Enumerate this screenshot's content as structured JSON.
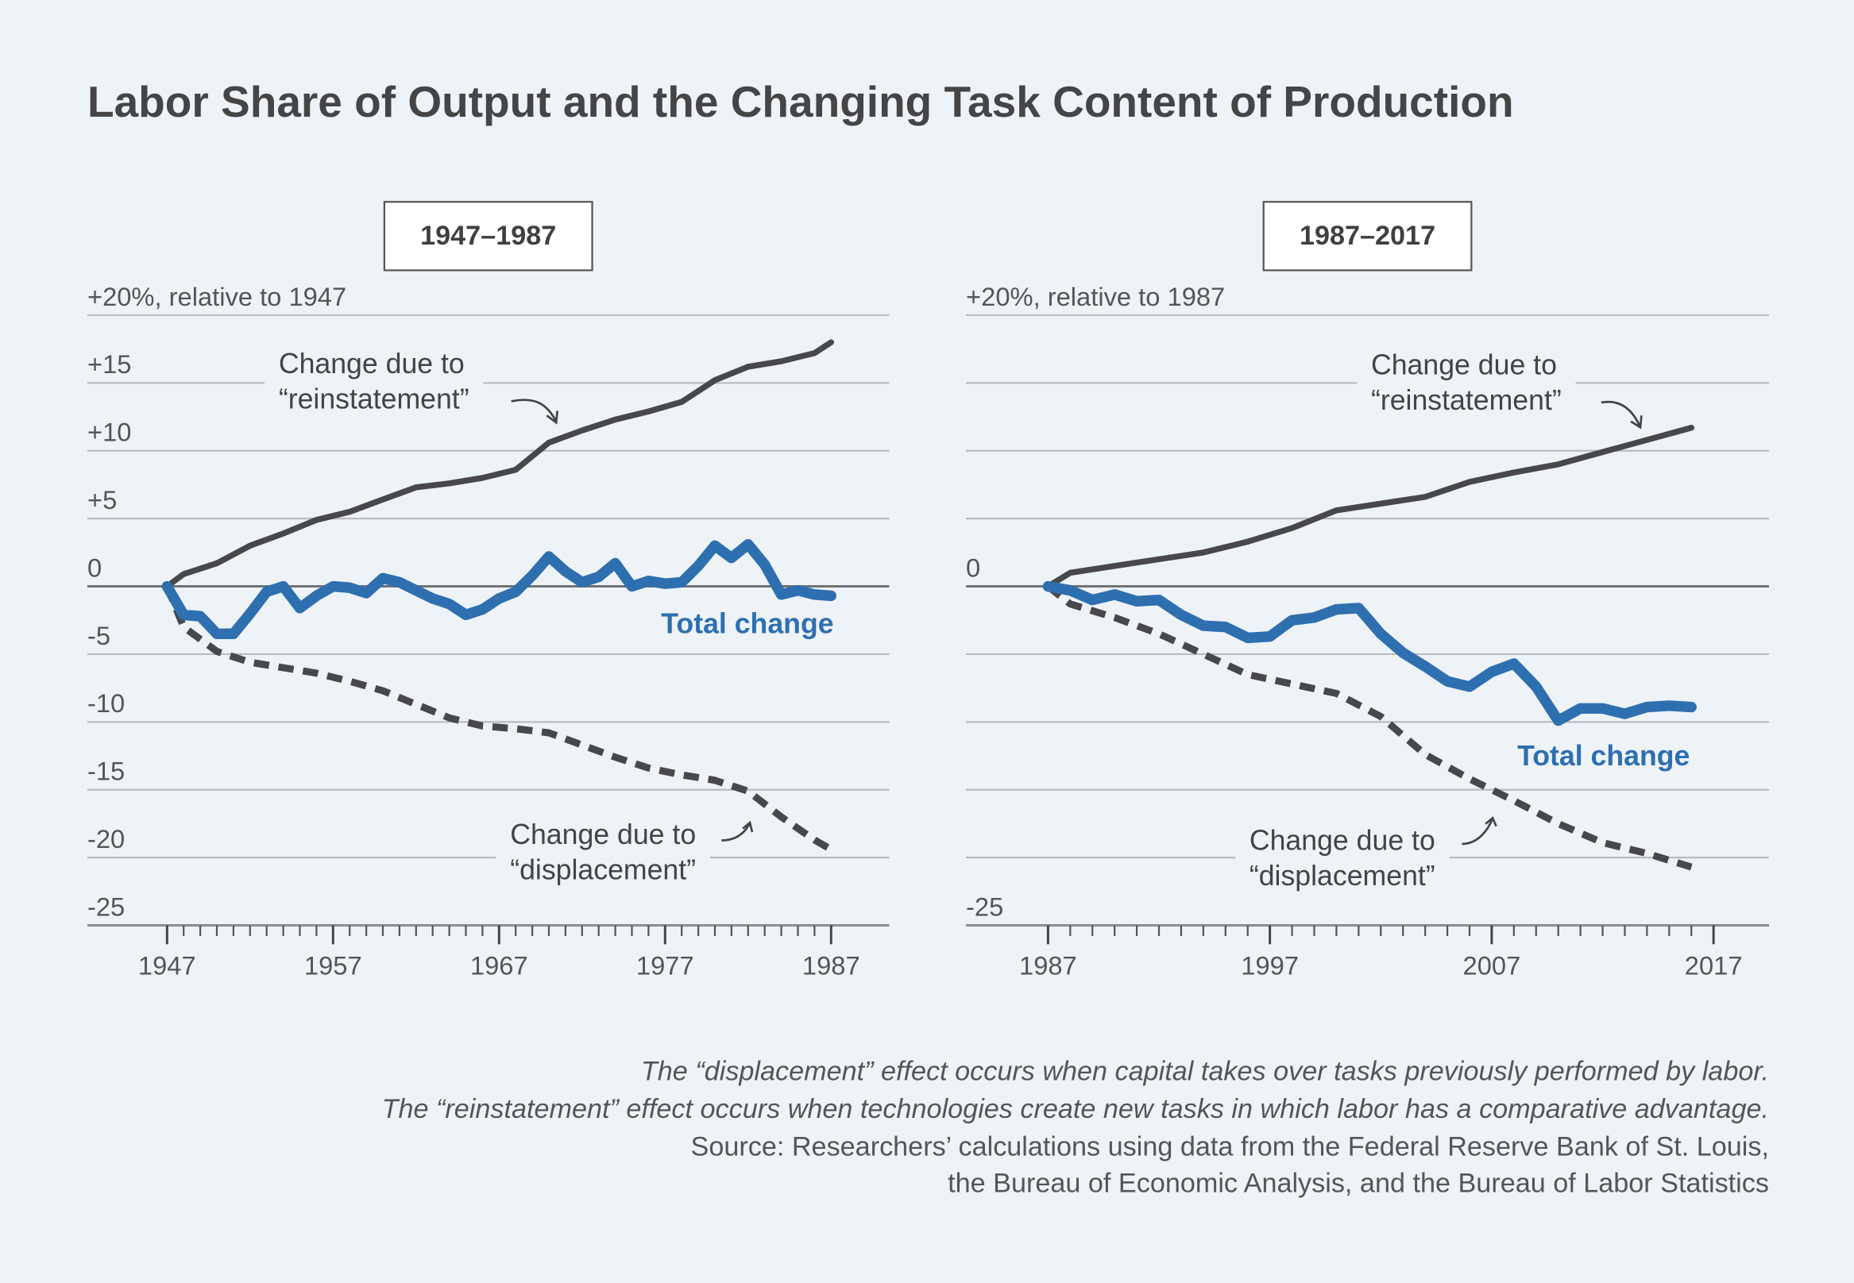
{
  "title": "Labor Share of Output and the Changing Task Content of Production",
  "footnotes": [
    "The “displacement” effect occurs when capital takes over tasks previously performed by labor.",
    "The “reinstatement” effect occurs when technologies create new tasks in which labor has a comparative advantage.",
    "Source: Researchers’ calculations using data from the Federal Reserve Bank of St. Louis,",
    "the Bureau of Economic Analysis, and the Bureau of Labor Statistics"
  ],
  "chart_data": [
    {
      "type": "line",
      "title": "1947–1987",
      "xlim": [
        1942.2,
        1990.5
      ],
      "xticks": [
        1947,
        1957,
        1967,
        1977,
        1987
      ],
      "minor_xtick_step": 1,
      "ylim": [
        -25,
        20
      ],
      "yticks": [
        {
          "value": 20,
          "label": "+20%, relative to 1947"
        },
        {
          "value": 15,
          "label": "+15"
        },
        {
          "value": 10,
          "label": "+10"
        },
        {
          "value": 5,
          "label": "+5"
        },
        0,
        -5,
        -10,
        -15,
        -20,
        -25
      ],
      "grid": true,
      "series": [
        {
          "name": "Change due to “reinstatement”",
          "color": "#48484c",
          "style": "solid",
          "x": [
            1947,
            1948,
            1950,
            1952,
            1954,
            1956,
            1958,
            1960,
            1962,
            1964,
            1966,
            1968,
            1970,
            1972,
            1974,
            1976,
            1978,
            1980,
            1982,
            1984,
            1986,
            1987
          ],
          "values": [
            0,
            0.9,
            1.7,
            3.0,
            3.9,
            4.9,
            5.5,
            6.4,
            7.3,
            7.6,
            8.0,
            8.6,
            10.6,
            11.5,
            12.3,
            12.9,
            13.6,
            15.2,
            16.2,
            16.6,
            17.2,
            18.0
          ]
        },
        {
          "name": "Total change",
          "color": "#2e6fb0",
          "style": "solid",
          "x": [
            1947,
            1948,
            1949,
            1950,
            1951,
            1952,
            1953,
            1954,
            1955,
            1956,
            1957,
            1958,
            1959,
            1960,
            1961,
            1962,
            1963,
            1964,
            1965,
            1966,
            1967,
            1968,
            1969,
            1970,
            1971,
            1972,
            1973,
            1974,
            1975,
            1976,
            1977,
            1978,
            1979,
            1980,
            1981,
            1982,
            1983,
            1984,
            1985,
            1986,
            1987
          ],
          "values": [
            0,
            -2.1,
            -2.2,
            -3.5,
            -3.5,
            -2.0,
            -0.4,
            0,
            -1.6,
            -0.7,
            0,
            -0.1,
            -0.5,
            0.6,
            0.3,
            -0.3,
            -0.9,
            -1.3,
            -2.1,
            -1.7,
            -0.9,
            -0.4,
            0.8,
            2.2,
            1.1,
            0.3,
            0.7,
            1.7,
            0,
            0.4,
            0.2,
            0.3,
            1.5,
            3.0,
            2.1,
            3.1,
            1.6,
            -0.6,
            -0.3,
            -0.6,
            -0.7
          ]
        },
        {
          "name": "Change due to “displacement”",
          "color": "#48484c",
          "style": "dashed",
          "x": [
            1947,
            1948,
            1950,
            1952,
            1954,
            1956,
            1958,
            1960,
            1962,
            1964,
            1966,
            1968,
            1970,
            1972,
            1974,
            1976,
            1978,
            1980,
            1982,
            1984,
            1986,
            1987
          ],
          "values": [
            0,
            -3.0,
            -4.8,
            -5.6,
            -6.0,
            -6.4,
            -7.0,
            -7.7,
            -8.7,
            -9.7,
            -10.3,
            -10.5,
            -10.8,
            -11.7,
            -12.6,
            -13.4,
            -13.9,
            -14.3,
            -15.1,
            -17.0,
            -18.7,
            -19.4
          ]
        }
      ]
    },
    {
      "type": "line",
      "title": "1987–2017",
      "xlim": [
        1983.3,
        2019.5
      ],
      "xticks": [
        1987,
        1997,
        2007,
        2017
      ],
      "minor_xtick_step": 1,
      "ylim": [
        -25,
        20
      ],
      "yticks": [
        {
          "value": 20,
          "label": "+20%, relative to 1987"
        },
        0,
        -25
      ],
      "grid_yticks": [
        15,
        10,
        5,
        -5,
        -10,
        -15,
        -20
      ],
      "grid": true,
      "series": [
        {
          "name": "Change due to “reinstatement”",
          "color": "#48484c",
          "style": "solid",
          "x": [
            1987,
            1988,
            1990,
            1992,
            1994,
            1996,
            1998,
            2000,
            2002,
            2004,
            2006,
            2008,
            2010,
            2012,
            2014,
            2016
          ],
          "values": [
            0,
            1.0,
            1.5,
            2.0,
            2.5,
            3.3,
            4.3,
            5.6,
            6.1,
            6.6,
            7.7,
            8.4,
            9.0,
            9.9,
            10.8,
            11.7
          ]
        },
        {
          "name": "Total change",
          "color": "#2e6fb0",
          "style": "solid",
          "x": [
            1987,
            1988,
            1989,
            1990,
            1991,
            1992,
            1993,
            1994,
            1995,
            1996,
            1997,
            1998,
            1999,
            2000,
            2001,
            2002,
            2003,
            2004,
            2005,
            2006,
            2007,
            2008,
            2009,
            2010,
            2011,
            2012,
            2013,
            2014,
            2015,
            2016
          ],
          "values": [
            0,
            -0.3,
            -1.0,
            -0.6,
            -1.1,
            -1.0,
            -2.1,
            -2.9,
            -3.0,
            -3.8,
            -3.7,
            -2.5,
            -2.3,
            -1.7,
            -1.6,
            -3.5,
            -4.9,
            -5.9,
            -7.0,
            -7.4,
            -6.3,
            -5.7,
            -7.4,
            -9.9,
            -9.0,
            -9.0,
            -9.4,
            -8.9,
            -8.8,
            -8.9
          ]
        },
        {
          "name": "Change due to “displacement”",
          "color": "#48484c",
          "style": "dashed",
          "x": [
            1987,
            1988,
            1990,
            1992,
            1994,
            1996,
            1998,
            2000,
            2002,
            2004,
            2006,
            2008,
            2010,
            2012,
            2014,
            2016
          ],
          "values": [
            0,
            -1.3,
            -2.3,
            -3.5,
            -5.0,
            -6.5,
            -7.2,
            -7.9,
            -9.6,
            -12.4,
            -14.2,
            -15.8,
            -17.5,
            -18.9,
            -19.7,
            -20.7
          ]
        }
      ]
    }
  ]
}
